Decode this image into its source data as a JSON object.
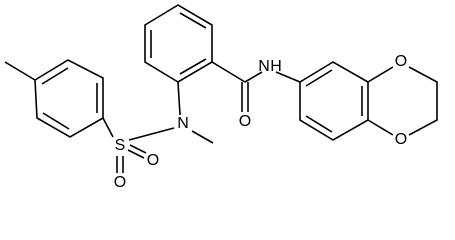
{
  "atoms": [
    {
      "label": "S"
    },
    {
      "label": "O"
    },
    {
      "label": "O"
    },
    {
      "label": "N"
    },
    {
      "label": "O"
    },
    {
      "label": "N"
    },
    {
      "label": "H"
    },
    {
      "label": "O"
    },
    {
      "label": "O"
    }
  ]
}
